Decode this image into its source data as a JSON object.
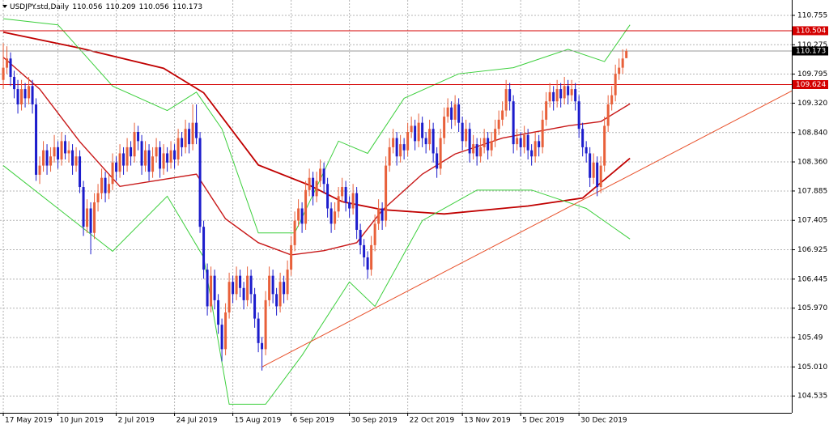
{
  "chart_data": {
    "type": "candlestick",
    "title": "USDJPY.std,Daily",
    "header_values": [
      110.056,
      110.209,
      110.056,
      110.173
    ],
    "up_color": "#e8603a",
    "down_color": "#1c1ccc",
    "grid": true,
    "xlim": [
      -0.9,
      216.4
    ],
    "ylim": [
      104.26,
      110.94
    ],
    "xticks": [
      {
        "value": 0,
        "label": "17 May 2019"
      },
      {
        "value": 15,
        "label": "10 Jun 2019"
      },
      {
        "value": 31,
        "label": "2 Jul 2019"
      },
      {
        "value": 47,
        "label": "24 Jul 2019"
      },
      {
        "value": 63,
        "label": "15 Aug 2019"
      },
      {
        "value": 79,
        "label": "6 Sep 2019"
      },
      {
        "value": 95,
        "label": "30 Sep 2019"
      },
      {
        "value": 111,
        "label": "22 Oct 2019"
      },
      {
        "value": 126,
        "label": "13 Nov 2019"
      },
      {
        "value": 142,
        "label": "5 Dec 2019"
      },
      {
        "value": 158,
        "label": "30 Dec 2019"
      }
    ],
    "yticks": [
      110.755,
      110.275,
      109.795,
      {
        "value": 109.32,
        "label": "109.320"
      },
      {
        "value": 108.84,
        "label": "108.840"
      },
      {
        "value": 108.36,
        "label": "108.360"
      },
      107.885,
      107.405,
      106.925,
      106.445,
      {
        "value": 105.97,
        "label": "105.970"
      },
      105.49,
      {
        "value": 105.01,
        "label": "105.010"
      },
      104.535
    ],
    "levels": [
      {
        "value": 110.504,
        "color": "#d40000",
        "box": "#d40000"
      },
      {
        "value": 110.173,
        "color": "#9a9a9a",
        "box": "#000000"
      },
      {
        "value": 109.624,
        "color": "#d40000",
        "box": "#d40000"
      }
    ],
    "trendline": {
      "x": [
        71,
        216.4
      ],
      "values": [
        105.01,
        109.52
      ],
      "color": "#e8502a"
    },
    "lines": [
      {
        "color": "#c00000",
        "width": 1.8,
        "x": [
          0,
          21,
          44,
          55,
          70,
          84,
          93,
          104,
          121,
          144,
          159,
          172
        ],
        "values": [
          110.48,
          110.22,
          109.89,
          109.49,
          108.31,
          107.98,
          107.71,
          107.58,
          107.51,
          107.64,
          107.77,
          108.42
        ]
      },
      {
        "color": "#c81818",
        "width": 1.4,
        "x": [
          0,
          10,
          21,
          32,
          53,
          61,
          70,
          79,
          88,
          97,
          104,
          115,
          124,
          137,
          155,
          164,
          172
        ],
        "values": [
          110.07,
          109.55,
          108.69,
          107.96,
          108.16,
          107.43,
          107.04,
          106.84,
          106.91,
          107.04,
          107.57,
          108.16,
          108.49,
          108.75,
          108.95,
          109.02,
          109.31
        ]
      },
      {
        "color": "#3ccf3c",
        "width": 1,
        "x": [
          0,
          15,
          30,
          45,
          53,
          60,
          70,
          80,
          92,
          100,
          110,
          125,
          140,
          155,
          165,
          172
        ],
        "values": [
          110.7,
          110.6,
          109.6,
          109.2,
          109.5,
          108.9,
          107.2,
          107.2,
          108.7,
          108.5,
          109.4,
          109.8,
          109.9,
          110.2,
          110.0,
          110.6
        ]
      },
      {
        "color": "#3ccf3c",
        "width": 1,
        "x": [
          0,
          15,
          30,
          45,
          55,
          62,
          72,
          82,
          95,
          102,
          115,
          130,
          145,
          160,
          172
        ],
        "values": [
          108.3,
          107.6,
          106.9,
          107.8,
          106.8,
          104.4,
          104.4,
          105.2,
          106.4,
          106.0,
          107.4,
          107.9,
          107.9,
          107.6,
          107.1
        ]
      }
    ],
    "ohlc": [
      [
        109.7,
        110.3,
        109.55,
        109.9
      ],
      [
        109.9,
        110.25,
        109.8,
        110.05
      ],
      [
        110.05,
        110.15,
        109.6,
        109.75
      ],
      [
        109.75,
        109.85,
        109.4,
        109.55
      ],
      [
        109.55,
        109.7,
        109.15,
        109.3
      ],
      [
        109.3,
        109.7,
        109.2,
        109.55
      ],
      [
        109.55,
        109.65,
        109.25,
        109.4
      ],
      [
        109.4,
        109.75,
        109.3,
        109.6
      ],
      [
        109.6,
        109.7,
        109.15,
        109.3
      ],
      [
        109.3,
        109.4,
        108.05,
        108.15
      ],
      [
        108.15,
        108.45,
        108.0,
        108.3
      ],
      [
        108.3,
        108.7,
        108.2,
        108.55
      ],
      [
        108.55,
        108.65,
        108.15,
        108.3
      ],
      [
        108.3,
        108.6,
        108.2,
        108.45
      ],
      [
        108.45,
        108.8,
        108.35,
        108.6
      ],
      [
        108.6,
        108.7,
        108.25,
        108.4
      ],
      [
        108.4,
        108.85,
        108.3,
        108.7
      ],
      [
        108.7,
        108.8,
        108.4,
        108.5
      ],
      [
        108.5,
        108.7,
        108.35,
        108.55
      ],
      [
        108.55,
        108.65,
        108.15,
        108.3
      ],
      [
        108.3,
        108.6,
        108.2,
        108.45
      ],
      [
        108.45,
        108.55,
        107.85,
        107.95
      ],
      [
        107.95,
        108.05,
        107.15,
        107.3
      ],
      [
        107.3,
        107.75,
        107.2,
        107.6
      ],
      [
        107.6,
        107.7,
        106.85,
        107.2
      ],
      [
        107.2,
        107.85,
        107.1,
        107.7
      ],
      [
        107.7,
        108.0,
        107.55,
        107.85
      ],
      [
        107.85,
        108.25,
        107.75,
        108.1
      ],
      [
        108.1,
        108.2,
        107.7,
        107.85
      ],
      [
        107.85,
        108.15,
        107.75,
        108.0
      ],
      [
        108.0,
        108.5,
        107.9,
        108.35
      ],
      [
        108.35,
        108.45,
        108.05,
        108.2
      ],
      [
        108.2,
        108.65,
        108.1,
        108.5
      ],
      [
        108.5,
        108.6,
        108.15,
        108.3
      ],
      [
        108.3,
        108.75,
        108.2,
        108.6
      ],
      [
        108.6,
        108.7,
        108.3,
        108.45
      ],
      [
        108.45,
        109.0,
        108.35,
        108.85
      ],
      [
        108.85,
        108.95,
        108.55,
        108.7
      ],
      [
        108.7,
        108.8,
        108.15,
        108.3
      ],
      [
        108.3,
        108.7,
        108.2,
        108.55
      ],
      [
        108.55,
        108.65,
        108.05,
        108.2
      ],
      [
        108.2,
        108.6,
        108.1,
        108.45
      ],
      [
        108.45,
        108.75,
        108.35,
        108.6
      ],
      [
        108.6,
        108.7,
        108.1,
        108.25
      ],
      [
        108.25,
        108.65,
        108.15,
        108.5
      ],
      [
        108.5,
        108.6,
        108.2,
        108.35
      ],
      [
        108.35,
        108.7,
        108.25,
        108.55
      ],
      [
        108.55,
        108.65,
        108.25,
        108.4
      ],
      [
        108.4,
        108.9,
        108.3,
        108.75
      ],
      [
        108.75,
        108.85,
        108.45,
        108.6
      ],
      [
        108.6,
        109.05,
        108.5,
        108.9
      ],
      [
        108.9,
        109.0,
        108.5,
        108.65
      ],
      [
        108.65,
        109.3,
        108.55,
        109.0
      ],
      [
        109.0,
        109.3,
        108.65,
        108.75
      ],
      [
        108.75,
        108.85,
        107.2,
        107.3
      ],
      [
        107.3,
        107.4,
        106.45,
        106.6
      ],
      [
        106.6,
        106.7,
        105.85,
        106.0
      ],
      [
        106.0,
        106.65,
        105.9,
        106.5
      ],
      [
        106.5,
        106.6,
        105.95,
        106.1
      ],
      [
        106.1,
        106.2,
        105.55,
        105.7
      ],
      [
        105.7,
        105.8,
        105.1,
        105.3
      ],
      [
        105.3,
        106.05,
        105.2,
        105.9
      ],
      [
        105.9,
        106.55,
        105.8,
        106.4
      ],
      [
        106.4,
        106.5,
        106.05,
        106.2
      ],
      [
        106.2,
        106.65,
        106.1,
        106.5
      ],
      [
        106.5,
        106.6,
        106.15,
        106.3
      ],
      [
        106.3,
        106.4,
        105.95,
        106.1
      ],
      [
        106.1,
        106.65,
        106.0,
        106.5
      ],
      [
        106.5,
        106.6,
        106.05,
        106.2
      ],
      [
        106.2,
        106.3,
        105.65,
        105.8
      ],
      [
        105.8,
        105.9,
        105.25,
        105.4
      ],
      [
        105.4,
        105.5,
        104.95,
        105.3
      ],
      [
        105.3,
        106.25,
        105.2,
        106.1
      ],
      [
        106.1,
        106.65,
        106.0,
        106.5
      ],
      [
        106.5,
        106.6,
        106.05,
        106.2
      ],
      [
        106.2,
        106.3,
        105.85,
        106.0
      ],
      [
        106.0,
        106.55,
        105.9,
        106.4
      ],
      [
        106.4,
        106.5,
        106.05,
        106.2
      ],
      [
        106.2,
        106.75,
        106.1,
        106.6
      ],
      [
        106.6,
        107.15,
        106.5,
        107.0
      ],
      [
        107.0,
        107.55,
        106.9,
        107.4
      ],
      [
        107.4,
        107.75,
        107.3,
        107.6
      ],
      [
        107.6,
        107.7,
        107.2,
        107.35
      ],
      [
        107.35,
        108.05,
        107.25,
        107.9
      ],
      [
        107.9,
        108.25,
        107.8,
        108.1
      ],
      [
        108.1,
        108.2,
        107.65,
        107.8
      ],
      [
        107.8,
        108.2,
        107.7,
        108.05
      ],
      [
        108.05,
        108.4,
        107.95,
        108.25
      ],
      [
        108.25,
        108.35,
        107.85,
        108.0
      ],
      [
        108.0,
        108.1,
        107.45,
        107.6
      ],
      [
        107.6,
        107.7,
        107.2,
        107.35
      ],
      [
        107.35,
        107.7,
        107.25,
        107.55
      ],
      [
        107.55,
        107.95,
        107.45,
        107.8
      ],
      [
        107.8,
        108.1,
        107.7,
        107.95
      ],
      [
        107.95,
        108.05,
        107.55,
        107.7
      ],
      [
        107.7,
        107.8,
        107.45,
        107.6
      ],
      [
        107.6,
        108.0,
        107.5,
        107.85
      ],
      [
        107.85,
        107.95,
        107.1,
        107.25
      ],
      [
        107.25,
        107.35,
        106.85,
        107.0
      ],
      [
        107.0,
        107.1,
        106.65,
        106.8
      ],
      [
        106.8,
        106.9,
        106.45,
        106.6
      ],
      [
        106.6,
        107.15,
        106.5,
        107.0
      ],
      [
        107.0,
        107.5,
        106.9,
        107.35
      ],
      [
        107.35,
        107.75,
        107.25,
        107.6
      ],
      [
        107.6,
        107.7,
        107.25,
        107.4
      ],
      [
        107.4,
        108.45,
        107.3,
        108.3
      ],
      [
        108.3,
        108.75,
        108.2,
        108.6
      ],
      [
        108.6,
        108.9,
        108.5,
        108.75
      ],
      [
        108.75,
        108.85,
        108.3,
        108.45
      ],
      [
        108.45,
        108.8,
        108.35,
        108.65
      ],
      [
        108.65,
        108.75,
        108.4,
        108.55
      ],
      [
        108.55,
        109.0,
        108.45,
        108.85
      ],
      [
        108.85,
        109.1,
        108.75,
        108.95
      ],
      [
        108.95,
        109.05,
        108.55,
        108.7
      ],
      [
        108.7,
        109.15,
        108.6,
        109.0
      ],
      [
        109.0,
        109.1,
        108.6,
        108.75
      ],
      [
        108.75,
        108.85,
        108.5,
        108.65
      ],
      [
        108.65,
        109.05,
        108.55,
        108.9
      ],
      [
        108.9,
        109.0,
        108.35,
        108.5
      ],
      [
        108.5,
        108.6,
        108.1,
        108.25
      ],
      [
        108.25,
        108.9,
        108.15,
        108.75
      ],
      [
        108.75,
        109.25,
        108.65,
        109.1
      ],
      [
        109.1,
        109.4,
        109.0,
        109.25
      ],
      [
        109.25,
        109.35,
        108.9,
        109.05
      ],
      [
        109.05,
        109.45,
        108.95,
        109.3
      ],
      [
        109.3,
        109.4,
        108.85,
        109.0
      ],
      [
        109.0,
        109.1,
        108.55,
        108.7
      ],
      [
        108.7,
        109.05,
        108.6,
        108.9
      ],
      [
        108.9,
        109.0,
        108.35,
        108.5
      ],
      [
        108.5,
        108.8,
        108.4,
        108.65
      ],
      [
        108.65,
        108.75,
        108.3,
        108.45
      ],
      [
        108.45,
        108.75,
        108.35,
        108.6
      ],
      [
        108.6,
        108.9,
        108.5,
        108.75
      ],
      [
        108.75,
        108.85,
        108.4,
        108.55
      ],
      [
        108.55,
        108.85,
        108.45,
        108.7
      ],
      [
        108.7,
        109.05,
        108.6,
        108.9
      ],
      [
        108.9,
        109.2,
        108.8,
        109.05
      ],
      [
        109.05,
        109.35,
        108.95,
        109.2
      ],
      [
        109.2,
        109.7,
        109.1,
        109.55
      ],
      [
        109.55,
        109.65,
        109.2,
        109.35
      ],
      [
        109.35,
        109.45,
        108.5,
        108.65
      ],
      [
        108.65,
        108.9,
        108.55,
        108.75
      ],
      [
        108.75,
        108.85,
        108.45,
        108.6
      ],
      [
        108.6,
        108.95,
        108.5,
        108.8
      ],
      [
        108.8,
        108.9,
        108.4,
        108.55
      ],
      [
        108.55,
        108.65,
        108.3,
        108.45
      ],
      [
        108.45,
        108.85,
        108.35,
        108.7
      ],
      [
        108.7,
        108.8,
        108.45,
        108.6
      ],
      [
        108.6,
        109.2,
        108.5,
        109.05
      ],
      [
        109.05,
        109.5,
        108.95,
        109.35
      ],
      [
        109.35,
        109.65,
        109.25,
        109.5
      ],
      [
        109.5,
        109.6,
        109.2,
        109.35
      ],
      [
        109.35,
        109.7,
        109.25,
        109.55
      ],
      [
        109.55,
        109.65,
        109.25,
        109.4
      ],
      [
        109.4,
        109.75,
        109.3,
        109.6
      ],
      [
        109.6,
        109.7,
        109.3,
        109.45
      ],
      [
        109.45,
        109.7,
        109.35,
        109.55
      ],
      [
        109.55,
        109.65,
        109.2,
        109.35
      ],
      [
        109.35,
        109.45,
        108.75,
        108.9
      ],
      [
        108.9,
        109.0,
        108.45,
        108.6
      ],
      [
        108.6,
        108.7,
        108.35,
        108.5
      ],
      [
        108.5,
        108.6,
        107.95,
        108.1
      ],
      [
        108.1,
        108.5,
        108.0,
        108.35
      ],
      [
        108.35,
        108.45,
        107.8,
        107.95
      ],
      [
        107.95,
        108.45,
        107.85,
        108.3
      ],
      [
        108.3,
        109.1,
        108.2,
        108.95
      ],
      [
        108.95,
        109.45,
        108.85,
        109.3
      ],
      [
        109.3,
        109.6,
        109.2,
        109.45
      ],
      [
        109.45,
        109.95,
        109.35,
        109.8
      ],
      [
        109.8,
        110.05,
        109.7,
        109.9
      ],
      [
        109.9,
        110.2,
        109.8,
        110.05
      ],
      [
        110.056,
        110.209,
        110.056,
        110.173
      ]
    ]
  }
}
